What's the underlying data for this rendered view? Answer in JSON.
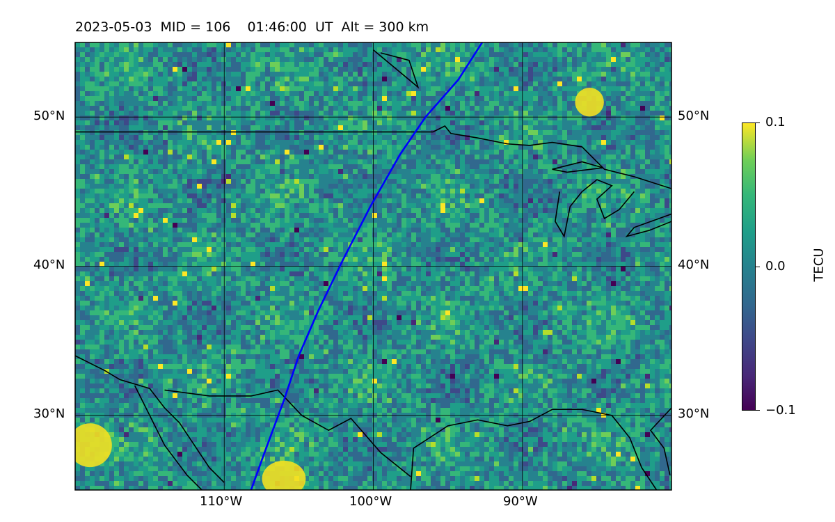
{
  "title": "2023-05-03  MID = 106    01:46:00  UT  Alt = 300 km",
  "map": {
    "lon_range": [
      -120,
      -80
    ],
    "lat_range": [
      25,
      55
    ],
    "grid_lons": [
      -110,
      -100,
      -90
    ],
    "grid_lats": [
      30,
      40,
      50
    ],
    "lon_tick_labels": [
      "110°W",
      "100°W",
      "90°W"
    ],
    "lat_tick_labels": [
      "30°N",
      "40°N",
      "50°N"
    ],
    "track_color": "#0000ff",
    "track": [
      {
        "lon": -108.2,
        "lat": 25.0
      },
      {
        "lon": -107.3,
        "lat": 27.5
      },
      {
        "lon": -106.0,
        "lat": 31.0
      },
      {
        "lon": -105.0,
        "lat": 34.0
      },
      {
        "lon": -103.7,
        "lat": 37.0
      },
      {
        "lon": -102.0,
        "lat": 40.5
      },
      {
        "lon": -100.2,
        "lat": 44.0
      },
      {
        "lon": -98.2,
        "lat": 47.5
      },
      {
        "lon": -96.5,
        "lat": 50.0
      },
      {
        "lon": -94.3,
        "lat": 52.5
      },
      {
        "lon": -92.7,
        "lat": 55.0
      }
    ]
  },
  "colorbar": {
    "label": "TECU",
    "ticks": [
      "0.1",
      "0.0",
      "−0.1"
    ],
    "range": [
      -0.1,
      0.1
    ],
    "colormap": "viridis"
  }
}
